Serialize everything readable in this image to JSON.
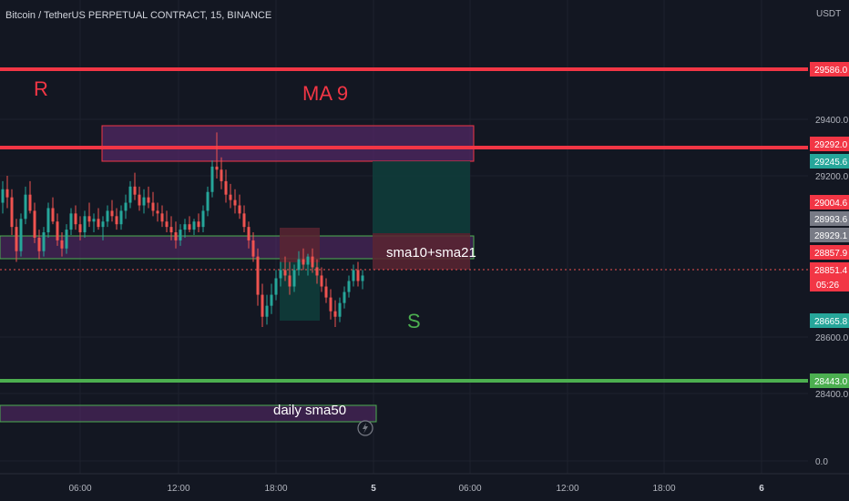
{
  "header": {
    "symbol_title": "Bitcoin / TetherUS PERPETUAL CONTRACT, 15, BINANCE",
    "currency": "USDT"
  },
  "colors": {
    "background": "#131722",
    "grid": "#1e222d",
    "axis_text": "#b2b5be",
    "candle_up": "#26a69a",
    "candle_down": "#ef5350",
    "resistance_line": "#f23645",
    "support_line": "#4caf50",
    "zone_fill": "#5b2a6e",
    "zone_border": "#f23645",
    "sma_zone_border": "#4caf50",
    "target_fill": "#0f3c3a",
    "stop_fill": "#5a2431"
  },
  "chart_data": {
    "type": "candlestick",
    "xlabel": "",
    "ylabel": "",
    "time_ticks": [
      "06:00",
      "12:00",
      "18:00",
      "5",
      "06:00",
      "12:00",
      "18:00",
      "6"
    ],
    "price_ticks": [
      "29400.0",
      "29200.0",
      "28600.0",
      "28400.0",
      "0.0"
    ],
    "price_labels": [
      {
        "value": "29586.0",
        "color": "#f23645"
      },
      {
        "value": "29292.0",
        "color": "#f23645"
      },
      {
        "value": "29245.6",
        "color": "#26a69a"
      },
      {
        "value": "29004.6",
        "color": "#f23645"
      },
      {
        "value": "28993.6",
        "color": "#787b86"
      },
      {
        "value": "28929.1",
        "color": "#787b86"
      },
      {
        "value": "28857.9",
        "color": "#f23645"
      },
      {
        "value": "28851.4",
        "color": "#f23645"
      },
      {
        "value": "28665.8",
        "color": "#26a69a"
      },
      {
        "value": "28443.0",
        "color": "#4caf50"
      }
    ],
    "countdown": "05:26",
    "horizontal_lines": [
      {
        "price": 29586.0,
        "color": "#f23645"
      },
      {
        "price": 29292.0,
        "color": "#f23645"
      },
      {
        "price": 28443.0,
        "color": "#4caf50"
      }
    ],
    "annotations": {
      "resistance": "R",
      "ma": "MA 9",
      "support": "S",
      "sma_zone": "sma10+sma21",
      "daily": "daily sma50"
    },
    "candles": [
      [
        29100,
        29180,
        29060,
        29150
      ],
      [
        29150,
        29200,
        29080,
        29120
      ],
      [
        29120,
        29150,
        28980,
        29010
      ],
      [
        29010,
        29040,
        28880,
        28920
      ],
      [
        28920,
        29060,
        28900,
        29040
      ],
      [
        29040,
        29160,
        29020,
        29130
      ],
      [
        29130,
        29180,
        29060,
        29070
      ],
      [
        29070,
        29100,
        28950,
        28970
      ],
      [
        28970,
        29000,
        28890,
        28920
      ],
      [
        28920,
        29010,
        28900,
        28990
      ],
      [
        28990,
        29100,
        28970,
        29080
      ],
      [
        29080,
        29120,
        29020,
        29030
      ],
      [
        29030,
        29060,
        28940,
        28960
      ],
      [
        28960,
        28990,
        28900,
        28930
      ],
      [
        28930,
        29020,
        28910,
        29000
      ],
      [
        29000,
        29080,
        28980,
        29060
      ],
      [
        29060,
        29090,
        29000,
        29020
      ],
      [
        29020,
        29050,
        28960,
        28990
      ],
      [
        28990,
        29070,
        28970,
        29050
      ],
      [
        29050,
        29100,
        29010,
        29030
      ],
      [
        29030,
        29060,
        28990,
        29040
      ],
      [
        29040,
        29080,
        29000,
        29010
      ],
      [
        29010,
        29050,
        28960,
        29030
      ],
      [
        29030,
        29090,
        29010,
        29070
      ],
      [
        29070,
        29110,
        29030,
        29050
      ],
      [
        29050,
        29080,
        29000,
        29020
      ],
      [
        29020,
        29090,
        29000,
        29070
      ],
      [
        29070,
        29130,
        29040,
        29100
      ],
      [
        29100,
        29180,
        29080,
        29160
      ],
      [
        29160,
        29210,
        29110,
        29130
      ],
      [
        29130,
        29160,
        29070,
        29090
      ],
      [
        29090,
        29150,
        29060,
        29120
      ],
      [
        29120,
        29160,
        29080,
        29100
      ],
      [
        29100,
        29140,
        29050,
        29070
      ],
      [
        29070,
        29100,
        29030,
        29060
      ],
      [
        29060,
        29090,
        29010,
        29030
      ],
      [
        29030,
        29070,
        28990,
        29010
      ],
      [
        29010,
        29050,
        28960,
        28990
      ],
      [
        28990,
        29030,
        28930,
        28960
      ],
      [
        28960,
        29020,
        28940,
        29000
      ],
      [
        29000,
        29040,
        28970,
        29020
      ],
      [
        29020,
        29050,
        28990,
        29000
      ],
      [
        29000,
        29040,
        28980,
        29030
      ],
      [
        29030,
        29060,
        28990,
        29010
      ],
      [
        29010,
        29090,
        28990,
        29070
      ],
      [
        29070,
        29160,
        29050,
        29140
      ],
      [
        29140,
        29250,
        29120,
        29230
      ],
      [
        29230,
        29350,
        29190,
        29220
      ],
      [
        29220,
        29260,
        29150,
        29180
      ],
      [
        29180,
        29220,
        29100,
        29130
      ],
      [
        29130,
        29170,
        29080,
        29110
      ],
      [
        29110,
        29150,
        29060,
        29090
      ],
      [
        29090,
        29130,
        29040,
        29060
      ],
      [
        29060,
        29090,
        28990,
        29010
      ],
      [
        29010,
        29030,
        28930,
        28960
      ],
      [
        28960,
        28990,
        28880,
        28900
      ],
      [
        28900,
        28930,
        28720,
        28760
      ],
      [
        28760,
        28800,
        28640,
        28680
      ],
      [
        28680,
        28760,
        28650,
        28720
      ],
      [
        28720,
        28800,
        28690,
        28760
      ],
      [
        28760,
        28850,
        28740,
        28820
      ],
      [
        28820,
        28880,
        28790,
        28850
      ],
      [
        28850,
        28900,
        28810,
        28830
      ],
      [
        28830,
        28880,
        28760,
        28790
      ],
      [
        28790,
        28870,
        28770,
        28850
      ],
      [
        28850,
        28920,
        28830,
        28890
      ],
      [
        28890,
        28930,
        28850,
        28870
      ],
      [
        28870,
        28910,
        28830,
        28900
      ],
      [
        28900,
        28930,
        28840,
        28860
      ],
      [
        28860,
        28890,
        28800,
        28830
      ],
      [
        28830,
        28860,
        28770,
        28790
      ],
      [
        28790,
        28820,
        28730,
        28750
      ],
      [
        28750,
        28780,
        28670,
        28700
      ],
      [
        28700,
        28740,
        28640,
        28680
      ],
      [
        28680,
        28750,
        28660,
        28730
      ],
      [
        28730,
        28790,
        28710,
        28770
      ],
      [
        28770,
        28830,
        28750,
        28810
      ],
      [
        28810,
        28870,
        28790,
        28850
      ],
      [
        28850,
        28880,
        28790,
        28810
      ],
      [
        28810,
        28850,
        28780,
        28830
      ]
    ]
  }
}
